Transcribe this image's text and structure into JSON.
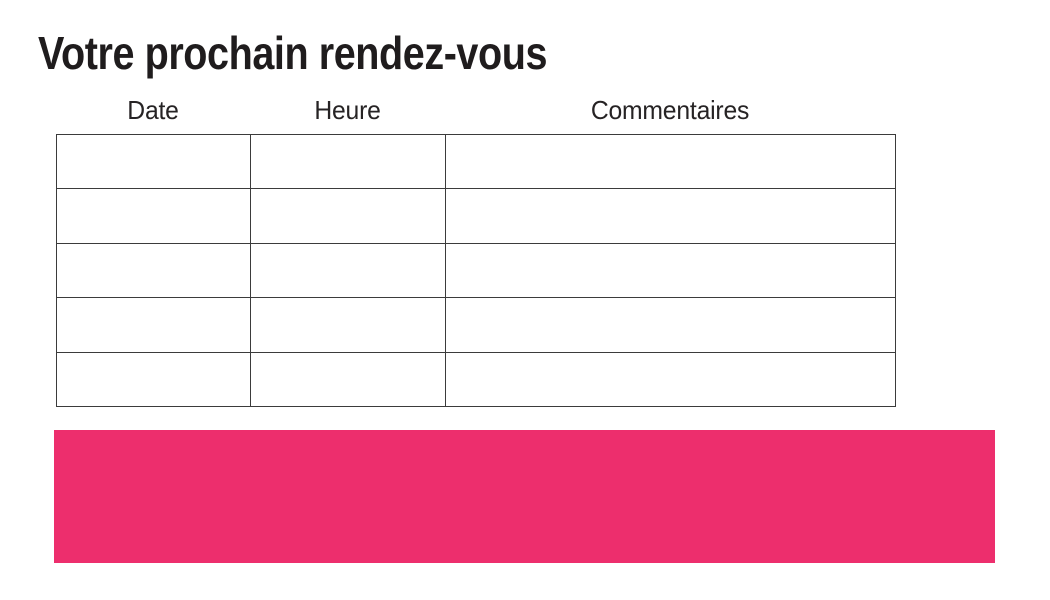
{
  "page": {
    "title": "Votre prochain rendez-vous",
    "background_color": "#ffffff"
  },
  "table": {
    "headers": [
      "Date",
      "Heure",
      "Commentaires"
    ],
    "rows": [
      [
        "",
        "",
        ""
      ],
      [
        "",
        "",
        ""
      ],
      [
        "",
        "",
        ""
      ],
      [
        "",
        "",
        ""
      ],
      [
        "",
        "",
        ""
      ]
    ],
    "border_color": "#3b3b3b"
  },
  "banner": {
    "color": "#ED2E6D"
  },
  "colors": {
    "title_text": "#1f1c1d",
    "header_text": "#262324"
  }
}
